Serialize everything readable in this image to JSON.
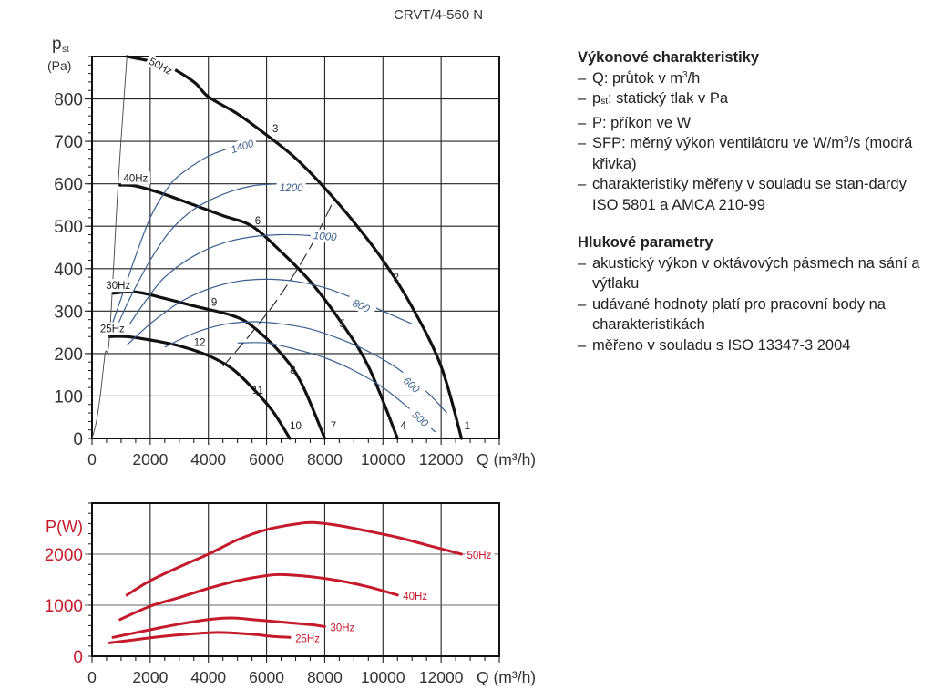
{
  "title": "CRVT/4-560 N",
  "colors": {
    "fan_curve": "#111111",
    "sfp_curve": "#3a5f8f",
    "power_curve": "#c41a2c",
    "power_axis": "#c41a2c",
    "grid": "#555555"
  },
  "legend": {
    "performance": {
      "heading": "Výkonové charakteristiky",
      "items": [
        {
          "pre": "Q: průtok v m",
          "sup": "3",
          "post": "/h"
        },
        {
          "pre": "p",
          "sub": "st",
          "post": ": statický tlak v Pa"
        },
        {
          "pre": "P: příkon ve W"
        },
        {
          "pre": "SFP: měrný výkon ventilátoru ve W/m",
          "sup": "3",
          "post": "/s (modrá křivka)"
        },
        {
          "pre": "charakteristiky měřeny v souladu se stan-dardy ISO 5801 a AMCA 210-99"
        }
      ]
    },
    "noise": {
      "heading": "Hlukové parametry",
      "items": [
        {
          "pre": "akustický výkon v oktávových pásmech na sání a výtlaku"
        },
        {
          "pre": "udávané hodnoty platí pro pracovní body na charakteristikách"
        },
        {
          "pre": "měřeno v souladu s ISO 13347-3 2004"
        }
      ]
    }
  },
  "chart_data": [
    {
      "type": "line",
      "title": "CRVT/4-560 N",
      "xlabel": "Q (m³/h)",
      "ylabel_main": "p",
      "ylabel_sub": "st",
      "ylabel_unit": "(Pa)",
      "xlim": [
        0,
        14000
      ],
      "ylim": [
        0,
        900
      ],
      "xticks": [
        0,
        2000,
        4000,
        6000,
        8000,
        10000,
        12000
      ],
      "yticks": [
        0,
        100,
        200,
        300,
        400,
        500,
        600,
        700,
        800
      ],
      "grid": true,
      "series": [
        {
          "name": "50Hz",
          "kind": "fan",
          "x": [
            1200,
            2500,
            3500,
            4000,
            5000,
            6000,
            7000,
            8000,
            9000,
            10000,
            11000,
            12000,
            12700
          ],
          "y": [
            900,
            880,
            840,
            805,
            765,
            715,
            660,
            590,
            510,
            420,
            310,
            170,
            0
          ]
        },
        {
          "name": "40Hz",
          "kind": "fan",
          "x": [
            960,
            1500,
            2500,
            3500,
            4500,
            5500,
            6500,
            7500,
            8500,
            9500,
            10500
          ],
          "y": [
            597,
            595,
            575,
            550,
            525,
            500,
            440,
            370,
            280,
            170,
            0
          ]
        },
        {
          "name": "30Hz",
          "kind": "fan",
          "x": [
            720,
            1500,
            2500,
            3500,
            4800,
            5500,
            6500,
            7200,
            8000
          ],
          "y": [
            342,
            345,
            330,
            312,
            290,
            265,
            200,
            130,
            0
          ]
        },
        {
          "name": "25Hz",
          "kind": "fan",
          "x": [
            600,
            1200,
            2000,
            3000,
            4000,
            4800,
            5500,
            6200,
            6800
          ],
          "y": [
            240,
            240,
            232,
            218,
            195,
            165,
            120,
            65,
            0
          ]
        },
        {
          "name": "system",
          "kind": "system",
          "x": [
            0,
            150,
            300,
            450,
            600,
            900,
            1200
          ],
          "y": [
            0,
            40,
            110,
            200,
            240,
            600,
            900
          ]
        },
        {
          "name": "1400",
          "kind": "sfp",
          "x": [
            700,
            1000,
            1500,
            2000,
            2500,
            3000,
            4000,
            5000,
            5700
          ],
          "y": [
            270,
            330,
            430,
            520,
            580,
            620,
            665,
            690,
            700
          ]
        },
        {
          "name": "1200",
          "kind": "sfp",
          "x": [
            900,
            1300,
            2000,
            2700,
            3500,
            4500,
            5500,
            6500,
            7000
          ],
          "y": [
            270,
            330,
            420,
            490,
            540,
            575,
            595,
            600,
            600
          ]
        },
        {
          "name": "1000",
          "kind": "sfp",
          "x": [
            1300,
            1800,
            2500,
            3500,
            4500,
            5500,
            6500,
            7500,
            8500
          ],
          "y": [
            270,
            320,
            380,
            430,
            460,
            475,
            480,
            478,
            470
          ]
        },
        {
          "name": "800",
          "kind": "sfp",
          "x": [
            1200,
            2000,
            3000,
            4000,
            5000,
            6000,
            7000,
            8000,
            9000,
            10000,
            11000
          ],
          "y": [
            220,
            270,
            320,
            352,
            370,
            375,
            370,
            355,
            330,
            300,
            270
          ]
        },
        {
          "name": "600",
          "kind": "sfp",
          "x": [
            2500,
            3500,
            4500,
            5500,
            6500,
            7500,
            8500,
            9500,
            10500,
            11500,
            12200
          ],
          "y": [
            215,
            248,
            268,
            275,
            270,
            258,
            235,
            205,
            165,
            110,
            60
          ]
        },
        {
          "name": "500",
          "kind": "sfp",
          "x": [
            5000,
            6000,
            7000,
            8000,
            9000,
            10000,
            11000,
            11800
          ],
          "y": [
            225,
            225,
            210,
            190,
            160,
            120,
            65,
            15
          ]
        },
        {
          "name": "dashed",
          "kind": "dashed",
          "x": [
            4500,
            5500,
            6500,
            7500,
            8300
          ],
          "y": [
            170,
            250,
            340,
            450,
            560
          ]
        }
      ],
      "series_labels": [
        {
          "text": "50Hz",
          "x": 2300,
          "y": 870,
          "rot": 28
        },
        {
          "text": "40Hz",
          "x": 1500,
          "y": 605
        },
        {
          "text": "30Hz",
          "x": 900,
          "y": 352
        },
        {
          "text": "25Hz",
          "x": 700,
          "y": 250
        },
        {
          "text": "1400",
          "x": 5200,
          "y": 680,
          "rot": -18,
          "blue": true
        },
        {
          "text": "1200",
          "x": 6850,
          "y": 582,
          "blue": true
        },
        {
          "text": "1000",
          "x": 8000,
          "y": 468,
          "rot": 5,
          "blue": true
        },
        {
          "text": "800",
          "x": 9200,
          "y": 305,
          "rot": 25,
          "blue": true
        },
        {
          "text": "600",
          "x": 10900,
          "y": 120,
          "rot": 42,
          "blue": true
        },
        {
          "text": "500",
          "x": 11200,
          "y": 40,
          "rot": 42,
          "blue": true
        }
      ],
      "point_labels": [
        {
          "text": "1",
          "x": 12900,
          "y": 22
        },
        {
          "text": "2",
          "x": 10450,
          "y": 372
        },
        {
          "text": "3",
          "x": 6300,
          "y": 722
        },
        {
          "text": "4",
          "x": 10700,
          "y": 22
        },
        {
          "text": "5",
          "x": 8600,
          "y": 262
        },
        {
          "text": "6",
          "x": 5700,
          "y": 505
        },
        {
          "text": "7",
          "x": 8300,
          "y": 22
        },
        {
          "text": "8",
          "x": 6900,
          "y": 152
        },
        {
          "text": "9",
          "x": 4200,
          "y": 312
        },
        {
          "text": "10",
          "x": 7000,
          "y": 22
        },
        {
          "text": "11",
          "x": 5700,
          "y": 105
        },
        {
          "text": "12",
          "x": 3700,
          "y": 218
        }
      ]
    },
    {
      "type": "line",
      "xlabel": "Q (m³/h)",
      "ylabel": "P(W)",
      "xlim": [
        0,
        14000
      ],
      "ylim": [
        0,
        3000
      ],
      "xticks": [
        0,
        2000,
        4000,
        6000,
        8000,
        10000,
        12000
      ],
      "yticks": [
        0,
        1000,
        2000
      ],
      "grid": true,
      "series": [
        {
          "name": "50Hz",
          "x": [
            1200,
            2000,
            3000,
            4000,
            5000,
            6000,
            7000,
            7600,
            8500,
            9500,
            10500,
            11500,
            12700
          ],
          "y": [
            1200,
            1480,
            1750,
            2000,
            2280,
            2480,
            2590,
            2620,
            2560,
            2450,
            2330,
            2180,
            2000
          ]
        },
        {
          "name": "40Hz",
          "x": [
            960,
            2000,
            3000,
            4000,
            5000,
            6000,
            6500,
            7500,
            8500,
            9500,
            10500
          ],
          "y": [
            720,
            980,
            1150,
            1330,
            1480,
            1580,
            1600,
            1560,
            1480,
            1360,
            1200
          ]
        },
        {
          "name": "30Hz",
          "x": [
            720,
            2000,
            3000,
            4000,
            4800,
            5500,
            6500,
            7500,
            8000
          ],
          "y": [
            370,
            520,
            630,
            720,
            750,
            720,
            670,
            620,
            580
          ]
        },
        {
          "name": "25Hz",
          "x": [
            600,
            2000,
            3000,
            4000,
            4500,
            5500,
            6200,
            6800
          ],
          "y": [
            260,
            360,
            420,
            460,
            465,
            430,
            390,
            370
          ]
        }
      ]
    }
  ]
}
